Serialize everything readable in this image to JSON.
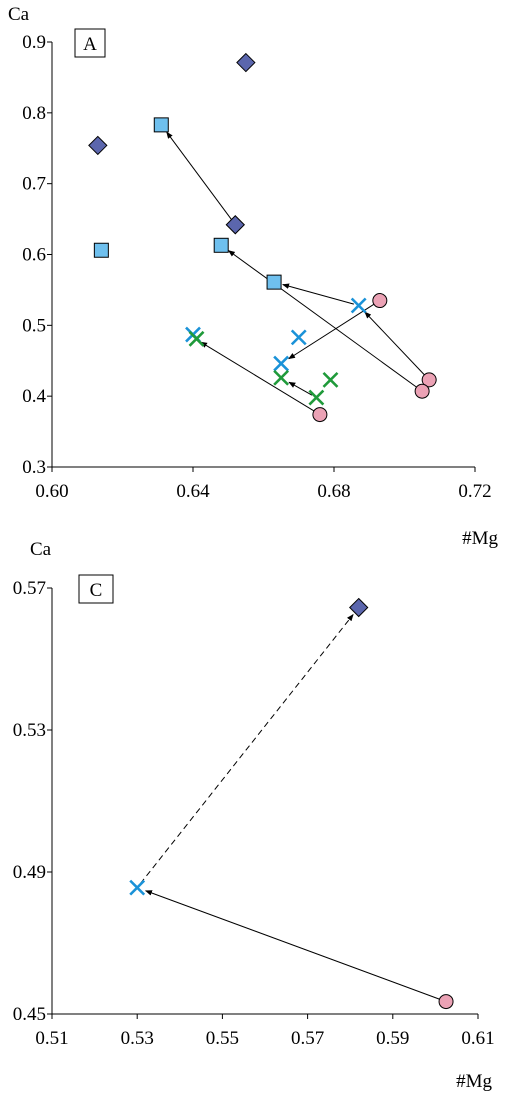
{
  "colors": {
    "diamond": "#5b66ad",
    "square": "#6fc0ee",
    "circle": "#eba2b5",
    "x_blue": "#1a92d8",
    "x_green": "#1f9a3a",
    "outline": "#000000"
  },
  "chart_data": [
    {
      "type": "scatter",
      "panel_label": "A",
      "xlabel": "#Mg",
      "ylabel": "Ca",
      "xlim": [
        0.6,
        0.72
      ],
      "ylim": [
        0.3,
        0.9
      ],
      "xticks": [
        0.6,
        0.64,
        0.68,
        0.72
      ],
      "xtick_labels": [
        "0.60",
        "0.64",
        "0.68",
        "0.72"
      ],
      "yticks": [
        0.3,
        0.4,
        0.5,
        0.6,
        0.7,
        0.8,
        0.9
      ],
      "ytick_labels": [
        "0.3",
        "0.4",
        "0.5",
        "0.6",
        "0.7",
        "0.8",
        "0.9"
      ],
      "series": [
        {
          "marker": "diamond",
          "color_key": "diamond",
          "points": [
            [
              0.655,
              0.871
            ],
            [
              0.613,
              0.754
            ],
            [
              0.652,
              0.642
            ]
          ]
        },
        {
          "marker": "square",
          "color_key": "square",
          "points": [
            [
              0.631,
              0.783
            ],
            [
              0.614,
              0.606
            ],
            [
              0.648,
              0.613
            ],
            [
              0.663,
              0.561
            ]
          ]
        },
        {
          "marker": "circle",
          "color_key": "circle",
          "points": [
            [
              0.693,
              0.535
            ],
            [
              0.707,
              0.423
            ],
            [
              0.705,
              0.407
            ],
            [
              0.676,
              0.374
            ]
          ]
        },
        {
          "marker": "x",
          "color_key": "x_blue",
          "points": [
            [
              0.687,
              0.528
            ],
            [
              0.67,
              0.483
            ],
            [
              0.665,
              0.446
            ],
            [
              0.64,
              0.487
            ]
          ]
        },
        {
          "marker": "x",
          "color_key": "x_green",
          "points": [
            [
              0.641,
              0.481
            ],
            [
              0.665,
              0.426
            ],
            [
              0.679,
              0.423
            ],
            [
              0.675,
              0.398
            ]
          ]
        }
      ],
      "arrows": [
        {
          "from": [
            0.652,
            0.642
          ],
          "to": [
            0.631,
            0.783
          ],
          "style": "solid"
        },
        {
          "from": [
            0.705,
            0.407
          ],
          "to": [
            0.648,
            0.613
          ],
          "style": "solid"
        },
        {
          "from": [
            0.707,
            0.423
          ],
          "to": [
            0.687,
            0.528
          ],
          "style": "solid"
        },
        {
          "from": [
            0.687,
            0.528
          ],
          "to": [
            0.663,
            0.561
          ],
          "style": "solid"
        },
        {
          "from": [
            0.693,
            0.535
          ],
          "to": [
            0.665,
            0.446
          ],
          "style": "solid"
        },
        {
          "from": [
            0.675,
            0.398
          ],
          "to": [
            0.665,
            0.426
          ],
          "style": "solid"
        },
        {
          "from": [
            0.676,
            0.374
          ],
          "to": [
            0.64,
            0.483
          ],
          "style": "solid"
        }
      ]
    },
    {
      "type": "scatter",
      "panel_label": "C",
      "xlabel": "#Mg",
      "ylabel": "Ca",
      "xlim": [
        0.51,
        0.61
      ],
      "ylim": [
        0.45,
        0.57
      ],
      "xticks": [
        0.51,
        0.53,
        0.55,
        0.57,
        0.59,
        0.61
      ],
      "xtick_labels": [
        "0.51",
        "0.53",
        "0.55",
        "0.57",
        "0.59",
        "0.61"
      ],
      "yticks": [
        0.45,
        0.49,
        0.53,
        0.57
      ],
      "ytick_labels": [
        "0.45",
        "0.49",
        "0.53",
        "0.57"
      ],
      "series": [
        {
          "marker": "diamond",
          "color_key": "diamond",
          "points": [
            [
              0.582,
              0.5645
            ]
          ]
        },
        {
          "marker": "x",
          "color_key": "x_blue",
          "points": [
            [
              0.53,
              0.4856
            ]
          ]
        },
        {
          "marker": "circle",
          "color_key": "circle",
          "points": [
            [
              0.6025,
              0.4535
            ]
          ]
        }
      ],
      "arrows": [
        {
          "from": [
            0.6025,
            0.4535
          ],
          "to": [
            0.53,
            0.4856
          ],
          "style": "solid"
        },
        {
          "from": [
            0.53,
            0.4856
          ],
          "to": [
            0.582,
            0.5645
          ],
          "style": "dashed"
        }
      ]
    }
  ]
}
